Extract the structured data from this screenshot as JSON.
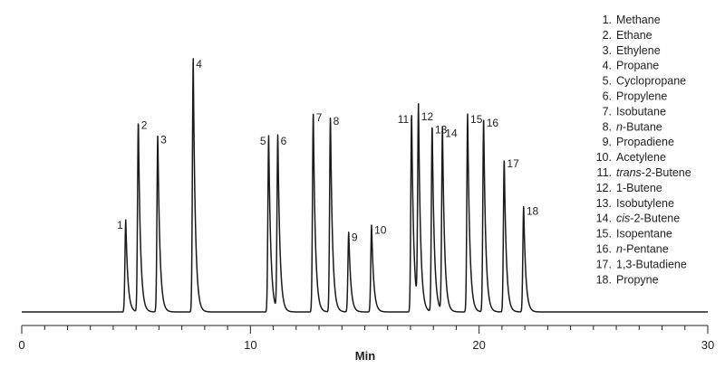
{
  "chart_data": {
    "type": "line",
    "title": "",
    "xlabel": "Min",
    "ylabel": "",
    "xlim": [
      0,
      30
    ],
    "x_ticks": [
      0,
      10,
      20,
      30
    ],
    "x_minor_step": 1,
    "grid": false,
    "legend_position": "top-right",
    "line_color": "#1a1a1a",
    "peaks": [
      {
        "n": "1",
        "t": 4.55,
        "h": 0.352
      },
      {
        "n": "2",
        "t": 5.1,
        "h": 0.732
      },
      {
        "n": "3",
        "t": 5.95,
        "h": 0.678
      },
      {
        "n": "4",
        "t": 7.5,
        "h": 0.966
      },
      {
        "n": "5",
        "t": 10.8,
        "h": 0.672
      },
      {
        "n": "6",
        "t": 11.2,
        "h": 0.672
      },
      {
        "n": "7",
        "t": 12.75,
        "h": 0.762
      },
      {
        "n": "8",
        "t": 13.5,
        "h": 0.749
      },
      {
        "n": "9",
        "t": 14.3,
        "h": 0.305
      },
      {
        "n": "10",
        "t": 15.3,
        "h": 0.332
      },
      {
        "n": "11",
        "t": 17.05,
        "h": 0.756
      },
      {
        "n": "12",
        "t": 17.35,
        "h": 0.766
      },
      {
        "n": "13",
        "t": 17.95,
        "h": 0.716
      },
      {
        "n": "14",
        "t": 18.4,
        "h": 0.702
      },
      {
        "n": "15",
        "t": 19.5,
        "h": 0.756
      },
      {
        "n": "16",
        "t": 20.2,
        "h": 0.742
      },
      {
        "n": "17",
        "t": 21.1,
        "h": 0.586
      },
      {
        "n": "18",
        "t": 21.95,
        "h": 0.405
      }
    ],
    "legend": [
      {
        "num": "1.",
        "parts": [
          {
            "t": "Methane"
          }
        ]
      },
      {
        "num": "2.",
        "parts": [
          {
            "t": "Ethane"
          }
        ]
      },
      {
        "num": "3.",
        "parts": [
          {
            "t": "Ethylene"
          }
        ]
      },
      {
        "num": "4.",
        "parts": [
          {
            "t": "Propane"
          }
        ]
      },
      {
        "num": "5.",
        "parts": [
          {
            "t": "Cyclopropane"
          }
        ]
      },
      {
        "num": "6.",
        "parts": [
          {
            "t": "Propylene"
          }
        ]
      },
      {
        "num": "7.",
        "parts": [
          {
            "t": "Isobutane"
          }
        ]
      },
      {
        "num": "8.",
        "parts": [
          {
            "t": "n",
            "i": true
          },
          {
            "t": "-Butane"
          }
        ]
      },
      {
        "num": "9.",
        "parts": [
          {
            "t": "Propadiene"
          }
        ]
      },
      {
        "num": "10.",
        "parts": [
          {
            "t": "Acetylene"
          }
        ]
      },
      {
        "num": "11.",
        "parts": [
          {
            "t": "trans",
            "i": true
          },
          {
            "t": "-2-Butene"
          }
        ]
      },
      {
        "num": "12.",
        "parts": [
          {
            "t": "1-Butene"
          }
        ]
      },
      {
        "num": "13.",
        "parts": [
          {
            "t": "Isobutylene"
          }
        ]
      },
      {
        "num": "14.",
        "parts": [
          {
            "t": "cis",
            "i": true
          },
          {
            "t": "-2-Butene"
          }
        ]
      },
      {
        "num": "15.",
        "parts": [
          {
            "t": "Isopentane"
          }
        ]
      },
      {
        "num": "16.",
        "parts": [
          {
            "t": "n",
            "i": true
          },
          {
            "t": "-Pentane"
          }
        ]
      },
      {
        "num": "17.",
        "parts": [
          {
            "t": "1,3-Butadiene"
          }
        ]
      },
      {
        "num": "18.",
        "parts": [
          {
            "t": "Propyne"
          }
        ]
      }
    ]
  }
}
